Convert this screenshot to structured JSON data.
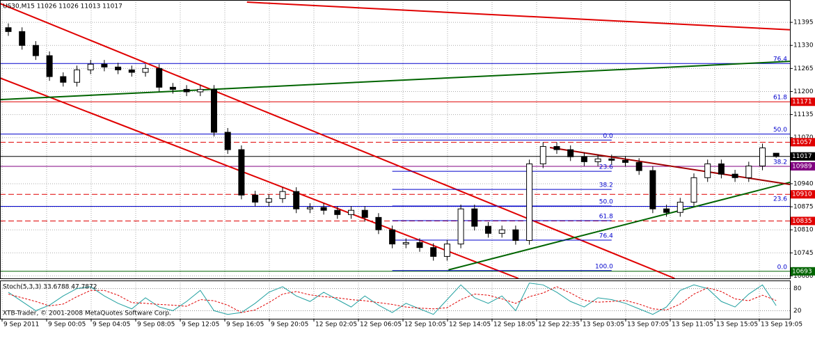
{
  "chart_data": [
    {
      "type": "candlestick",
      "title": "US30,M15  11026 11026 11013 11017",
      "open": [
        11380,
        11369,
        11330,
        11301,
        11242,
        11226,
        11261,
        11277,
        11269,
        11261,
        11254,
        11265,
        11212,
        11206,
        11199,
        11206,
        11085,
        11036,
        10908,
        10888,
        10898,
        10918,
        10869,
        10873,
        10865,
        10853,
        10865,
        10845,
        10810,
        10770,
        10774,
        10760,
        10735,
        10770,
        10869,
        10820,
        10800,
        10810,
        10780,
        10996,
        11045,
        11036,
        11016,
        11002,
        11010,
        11006,
        11000,
        10977,
        10869,
        10859,
        10888,
        10957,
        10996,
        10967,
        10957,
        10990,
        11026
      ],
      "high": [
        11392,
        11381,
        11342,
        11313,
        11254,
        11273,
        11289,
        11289,
        11281,
        11273,
        11277,
        11277,
        11224,
        11218,
        11218,
        11218,
        11097,
        11048,
        10920,
        10910,
        10930,
        10930,
        10885,
        10885,
        10877,
        10877,
        10877,
        10857,
        10822,
        10786,
        10786,
        10772,
        10782,
        10881,
        10881,
        10832,
        10822,
        10822,
        11008,
        11057,
        11057,
        11048,
        11028,
        11022,
        11022,
        11018,
        11012,
        10989,
        10881,
        10900,
        10969,
        11008,
        11008,
        10979,
        11002,
        11053,
        11026
      ],
      "low": [
        11357,
        11318,
        11289,
        11230,
        11214,
        11214,
        11249,
        11257,
        11249,
        11242,
        11242,
        11200,
        11194,
        11187,
        11187,
        11073,
        11024,
        10896,
        10876,
        10876,
        10886,
        10857,
        10857,
        10853,
        10841,
        10841,
        10833,
        10798,
        10758,
        10758,
        10748,
        10723,
        10723,
        10758,
        10808,
        10788,
        10788,
        10768,
        10768,
        10984,
        11024,
        11004,
        10990,
        10990,
        10994,
        10988,
        10965,
        10857,
        10847,
        10847,
        10876,
        10945,
        10955,
        10945,
        10945,
        10978,
        11013
      ],
      "close": [
        11369,
        11330,
        11301,
        11242,
        11226,
        11261,
        11277,
        11269,
        11261,
        11254,
        11265,
        11212,
        11206,
        11199,
        11206,
        11085,
        11036,
        10908,
        10888,
        10898,
        10918,
        10869,
        10873,
        10865,
        10853,
        10865,
        10845,
        10810,
        10770,
        10774,
        10760,
        10735,
        10770,
        10869,
        10820,
        10800,
        10810,
        10780,
        10996,
        11045,
        11036,
        11016,
        11002,
        11010,
        11006,
        11000,
        10977,
        10869,
        10859,
        10888,
        10957,
        10996,
        10967,
        10957,
        10990,
        11041,
        11017
      ],
      "up_color": "#ffffff",
      "down_color": "#000000",
      "ylim": [
        10673,
        11458
      ],
      "yticks": [
        11395,
        11330,
        11265,
        11200,
        11135,
        11070,
        10940,
        10875,
        10810,
        10745,
        10680
      ],
      "grid": true,
      "levels": [
        {
          "price": 11279,
          "color": "#0000cc",
          "dash": false,
          "boxed": false
        },
        {
          "price": 11171,
          "color": "#e00000",
          "dash": false,
          "boxed": true
        },
        {
          "price": 11080,
          "color": "#0000cc",
          "dash": false,
          "boxed": false
        },
        {
          "price": 11057,
          "color": "#e00000",
          "dash": true,
          "boxed": true
        },
        {
          "price": 11017,
          "color": "#000000",
          "dash": false,
          "boxed": true
        },
        {
          "price": 10989,
          "color": "#800080",
          "dash": false,
          "boxed": true
        },
        {
          "price": 10910,
          "color": "#e00000",
          "dash": true,
          "boxed": true
        },
        {
          "price": 10876,
          "color": "#0000cc",
          "dash": false,
          "boxed": false
        },
        {
          "price": 10835,
          "color": "#e00000",
          "dash": true,
          "boxed": true
        },
        {
          "price": 10693,
          "color": "#006400",
          "dash": false,
          "boxed": true
        }
      ],
      "trendlines": [
        {
          "x": [
            -0.6,
            48.6
          ],
          "y": [
            11448,
            10673
          ],
          "color": "#e00000"
        },
        {
          "x": [
            -0.6,
            37.2
          ],
          "y": [
            11238,
            10673
          ],
          "color": "#e00000"
        },
        {
          "x": [
            17.4,
            57
          ],
          "y": [
            11452,
            11374
          ],
          "color": "#e00000"
        },
        {
          "x": [
            -0.6,
            57
          ],
          "y": [
            11177,
            11285
          ],
          "color": "#006400"
        },
        {
          "x": [
            32.1,
            57
          ],
          "y": [
            10697,
            10944
          ],
          "color": "#006400"
        },
        {
          "x": [
            39.5,
            57
          ],
          "y": [
            11042,
            10938
          ],
          "color": "#a00000"
        }
      ],
      "right_fib_labels": [
        {
          "label": "76.4",
          "price": 11279
        },
        {
          "label": "61.8",
          "price": 11171
        },
        {
          "label": "50.0",
          "price": 11080
        },
        {
          "label": "38.2",
          "price": 10989
        },
        {
          "label": "23.6",
          "price": 10885
        },
        {
          "label": "0.0",
          "price": 10693
        }
      ],
      "fib": {
        "from": 28,
        "to": 44,
        "color": "#0000cc",
        "levels": [
          {
            "label": "0.0",
            "price": 11063
          },
          {
            "label": "23.6",
            "price": 10975
          },
          {
            "label": "38.2",
            "price": 10924
          },
          {
            "label": "50.0",
            "price": 10877
          },
          {
            "label": "61.8",
            "price": 10836
          },
          {
            "label": "76.4",
            "price": 10781
          },
          {
            "label": "100.0",
            "price": 10695
          }
        ]
      }
    },
    {
      "type": "line",
      "title": "Stoch(5,3,3) 33.6788 47.7872",
      "series": [
        {
          "color": "#20a0a0",
          "dash": false,
          "values": [
            70,
            45,
            20,
            35,
            60,
            80,
            85,
            60,
            40,
            25,
            55,
            30,
            20,
            45,
            75,
            20,
            10,
            15,
            40,
            70,
            85,
            60,
            45,
            70,
            50,
            30,
            60,
            35,
            15,
            40,
            25,
            10,
            50,
            90,
            55,
            40,
            60,
            20,
            95,
            90,
            70,
            45,
            30,
            55,
            50,
            40,
            25,
            10,
            30,
            75,
            90,
            80,
            45,
            30,
            65,
            90,
            33.6788
          ]
        },
        {
          "color": "#e00000",
          "dash": true,
          "values": [
            65,
            55,
            45,
            33,
            38,
            58,
            75,
            75,
            62,
            42,
            40,
            37,
            35,
            32,
            50,
            47,
            35,
            15,
            22,
            42,
            65,
            72,
            63,
            58,
            55,
            50,
            47,
            42,
            37,
            30,
            27,
            25,
            28,
            50,
            65,
            62,
            52,
            40,
            58,
            68,
            85,
            68,
            48,
            43,
            45,
            48,
            38,
            25,
            22,
            38,
            65,
            82,
            72,
            52,
            47,
            62,
            47.7872
          ]
        }
      ],
      "ylim": [
        0,
        100
      ],
      "yticks": [
        80,
        20
      ],
      "time_labels": [
        "9 Sep 2011",
        "9 Sep 00:05",
        "9 Sep 04:05",
        "9 Sep 08:05",
        "9 Sep 12:05",
        "9 Sep 16:05",
        "9 Sep 20:05",
        "12 Sep 02:05",
        "12 Sep 06:05",
        "12 Sep 10:05",
        "12 Sep 14:05",
        "12 Sep 18:05",
        "12 Sep 22:35",
        "13 Sep 03:05",
        "13 Sep 07:05",
        "13 Sep 11:05",
        "13 Sep 15:05",
        "13 Sep 19:05"
      ],
      "footer": "XTB-Trader, © 2001-2008 MetaQuotes Software Corp."
    }
  ]
}
